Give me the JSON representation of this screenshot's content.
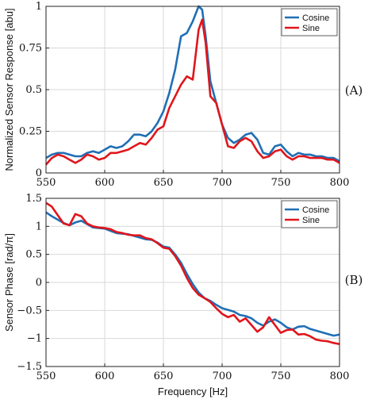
{
  "chart_data": [
    {
      "type": "line",
      "panel_label": "(A)",
      "xlabel": "",
      "ylabel": "Normalized Sensor Response [abu]",
      "xlim": [
        550,
        800
      ],
      "ylim": [
        0,
        1
      ],
      "xticks": [
        550,
        600,
        650,
        700,
        750,
        800
      ],
      "yticks": [
        0,
        0.25,
        0.5,
        0.75,
        1
      ],
      "ytick_labels": [
        "0",
        "0.25",
        "0.5",
        "0.75",
        "1"
      ],
      "legend": "top-right",
      "grid": true,
      "series": [
        {
          "name": "Cosine",
          "color": "#1f6fb5",
          "x": [
            550,
            555,
            560,
            565,
            570,
            575,
            580,
            585,
            590,
            595,
            600,
            605,
            610,
            615,
            620,
            625,
            630,
            635,
            640,
            645,
            650,
            655,
            660,
            665,
            670,
            675,
            680,
            683,
            686,
            690,
            695,
            700,
            705,
            710,
            715,
            720,
            725,
            730,
            735,
            740,
            745,
            750,
            755,
            760,
            765,
            770,
            775,
            780,
            785,
            790,
            795,
            800
          ],
          "y": [
            0.09,
            0.11,
            0.12,
            0.12,
            0.11,
            0.1,
            0.1,
            0.12,
            0.13,
            0.12,
            0.14,
            0.16,
            0.15,
            0.16,
            0.19,
            0.23,
            0.23,
            0.22,
            0.25,
            0.3,
            0.37,
            0.48,
            0.62,
            0.82,
            0.84,
            0.91,
            1.0,
            0.98,
            0.82,
            0.55,
            0.42,
            0.29,
            0.21,
            0.18,
            0.2,
            0.23,
            0.24,
            0.2,
            0.12,
            0.11,
            0.16,
            0.17,
            0.13,
            0.1,
            0.12,
            0.11,
            0.11,
            0.1,
            0.1,
            0.09,
            0.09,
            0.07
          ]
        },
        {
          "name": "Sine",
          "color": "#e0161c",
          "x": [
            550,
            555,
            560,
            565,
            570,
            575,
            580,
            585,
            590,
            595,
            600,
            605,
            610,
            615,
            620,
            625,
            630,
            635,
            640,
            645,
            650,
            655,
            660,
            665,
            670,
            675,
            680,
            683,
            686,
            690,
            695,
            700,
            705,
            710,
            715,
            720,
            725,
            730,
            735,
            740,
            745,
            750,
            755,
            760,
            765,
            770,
            775,
            780,
            785,
            790,
            795,
            800
          ],
          "y": [
            0.05,
            0.09,
            0.11,
            0.1,
            0.08,
            0.06,
            0.08,
            0.11,
            0.1,
            0.08,
            0.09,
            0.12,
            0.12,
            0.13,
            0.14,
            0.16,
            0.18,
            0.17,
            0.21,
            0.26,
            0.28,
            0.39,
            0.46,
            0.53,
            0.58,
            0.56,
            0.86,
            0.92,
            0.78,
            0.46,
            0.42,
            0.29,
            0.16,
            0.15,
            0.19,
            0.21,
            0.19,
            0.13,
            0.09,
            0.1,
            0.13,
            0.14,
            0.1,
            0.08,
            0.1,
            0.1,
            0.09,
            0.09,
            0.09,
            0.08,
            0.08,
            0.06
          ]
        }
      ]
    },
    {
      "type": "line",
      "panel_label": "(B)",
      "xlabel": "Frequency [Hz]",
      "ylabel": "Sensor Phase [rad/π]",
      "xlim": [
        550,
        800
      ],
      "ylim": [
        -1.5,
        1.5
      ],
      "xticks": [
        550,
        600,
        650,
        700,
        750,
        800
      ],
      "yticks": [
        -1.5,
        -1,
        -0.5,
        0,
        0.5,
        1,
        1.5
      ],
      "ytick_labels": [
        "−1.5",
        "−1",
        "−0.5",
        "0",
        "0.5",
        "1",
        "1.5"
      ],
      "legend": "top-right",
      "grid": true,
      "series": [
        {
          "name": "Cosine",
          "color": "#1f6fb5",
          "x": [
            550,
            555,
            560,
            565,
            570,
            575,
            580,
            585,
            590,
            595,
            600,
            605,
            610,
            615,
            620,
            625,
            630,
            635,
            640,
            645,
            650,
            655,
            660,
            665,
            670,
            675,
            680,
            685,
            690,
            695,
            700,
            705,
            710,
            715,
            720,
            725,
            730,
            735,
            740,
            745,
            750,
            755,
            760,
            765,
            770,
            775,
            780,
            785,
            790,
            795,
            800
          ],
          "y": [
            1.25,
            1.18,
            1.12,
            1.06,
            1.02,
            1.07,
            1.1,
            1.04,
            0.98,
            0.97,
            0.96,
            0.92,
            0.88,
            0.87,
            0.86,
            0.83,
            0.8,
            0.77,
            0.76,
            0.71,
            0.64,
            0.62,
            0.5,
            0.35,
            0.15,
            -0.03,
            -0.18,
            -0.28,
            -0.33,
            -0.4,
            -0.46,
            -0.49,
            -0.52,
            -0.58,
            -0.6,
            -0.64,
            -0.72,
            -0.77,
            -0.7,
            -0.66,
            -0.72,
            -0.8,
            -0.84,
            -0.79,
            -0.78,
            -0.83,
            -0.86,
            -0.89,
            -0.92,
            -0.95,
            -0.93
          ]
        },
        {
          "name": "Sine",
          "color": "#e0161c",
          "x": [
            550,
            555,
            560,
            565,
            570,
            575,
            580,
            585,
            590,
            595,
            600,
            605,
            610,
            615,
            620,
            625,
            630,
            635,
            640,
            645,
            650,
            655,
            660,
            665,
            670,
            675,
            680,
            685,
            690,
            695,
            700,
            705,
            710,
            715,
            720,
            725,
            730,
            735,
            740,
            745,
            750,
            755,
            760,
            765,
            770,
            775,
            780,
            785,
            790,
            795,
            800
          ],
          "y": [
            1.42,
            1.35,
            1.2,
            1.05,
            1.02,
            1.22,
            1.18,
            1.05,
            1.0,
            0.98,
            0.97,
            0.95,
            0.9,
            0.88,
            0.85,
            0.84,
            0.84,
            0.79,
            0.77,
            0.7,
            0.62,
            0.6,
            0.47,
            0.3,
            0.08,
            -0.1,
            -0.22,
            -0.28,
            -0.35,
            -0.46,
            -0.56,
            -0.62,
            -0.58,
            -0.7,
            -0.64,
            -0.76,
            -0.88,
            -0.8,
            -0.62,
            -0.76,
            -0.9,
            -0.85,
            -0.84,
            -0.93,
            -0.92,
            -0.96,
            -1.02,
            -1.04,
            -1.05,
            -1.08,
            -1.1
          ]
        }
      ]
    }
  ]
}
